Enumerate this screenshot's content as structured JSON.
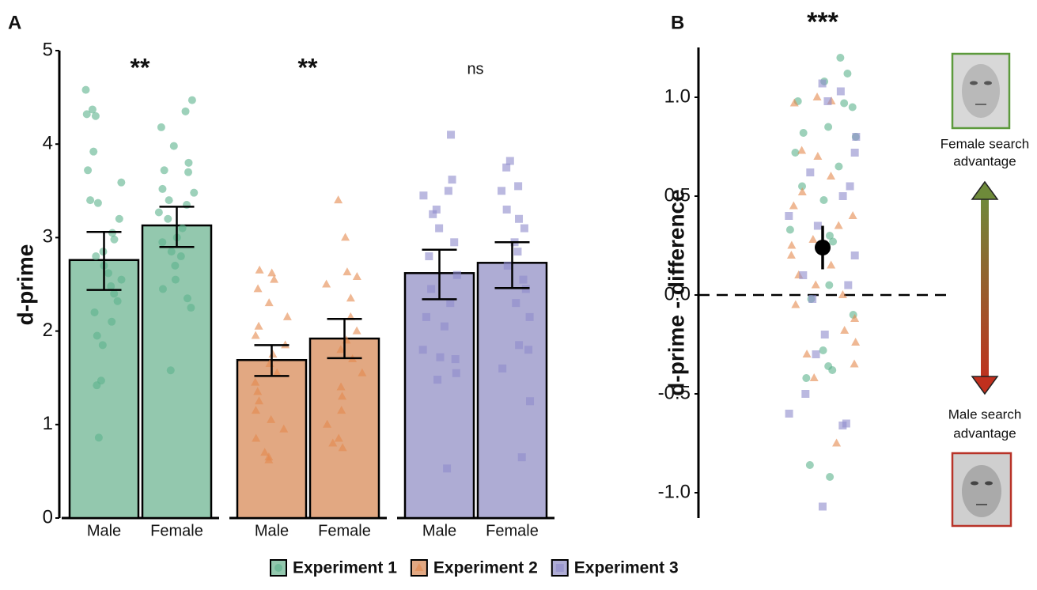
{
  "chart_data": [
    {
      "type": "bar",
      "panel_label": "A",
      "ylabel": "d-prime",
      "categories": [
        "Male",
        "Female"
      ],
      "ylim": [
        0,
        5
      ],
      "yticks": [
        0,
        1,
        2,
        3,
        4,
        5
      ],
      "series": [
        {
          "name": "Experiment 1",
          "color": "#93c8ae",
          "point_color": "#5cb38c",
          "marker": "circle",
          "annotation": "**",
          "values": [
            2.76,
            3.13
          ],
          "ci_low": [
            2.44,
            2.9
          ],
          "ci_high": [
            3.06,
            3.33
          ],
          "points": [
            [
              4.58,
              4.37,
              4.32,
              4.3,
              3.92,
              3.72,
              3.59,
              3.4,
              3.37,
              3.2,
              3.05,
              2.98,
              2.85,
              2.8,
              2.7,
              2.62,
              2.55,
              2.48,
              2.4,
              2.32,
              2.2,
              2.1,
              1.95,
              1.85,
              1.47,
              1.42,
              0.86
            ],
            [
              4.47,
              4.35,
              4.18,
              3.98,
              3.8,
              3.72,
              3.7,
              3.52,
              3.48,
              3.4,
              3.35,
              3.27,
              3.2,
              3.1,
              3.0,
              2.95,
              2.85,
              2.8,
              2.7,
              2.55,
              2.45,
              2.35,
              2.25,
              1.58
            ]
          ]
        },
        {
          "name": "Experiment 2",
          "color": "#e2a882",
          "point_color": "#e5884d",
          "marker": "triangle",
          "annotation": "**",
          "values": [
            1.69,
            1.92
          ],
          "ci_low": [
            1.52,
            1.71
          ],
          "ci_high": [
            1.85,
            2.13
          ],
          "points": [
            [
              2.65,
              2.62,
              2.55,
              2.45,
              2.3,
              2.15,
              2.05,
              1.95,
              1.85,
              1.75,
              1.65,
              1.55,
              1.45,
              1.35,
              1.25,
              1.15,
              1.05,
              0.95,
              0.85,
              0.7,
              0.65,
              0.62
            ],
            [
              3.4,
              3.0,
              2.63,
              2.58,
              2.5,
              2.35,
              2.15,
              2.0,
              1.9,
              1.8,
              1.7,
              1.55,
              1.4,
              1.3,
              1.15,
              1.0,
              0.85,
              0.8,
              0.75
            ]
          ]
        },
        {
          "name": "Experiment 3",
          "color": "#aeacd4",
          "point_color": "#8e8acb",
          "marker": "square",
          "annotation": "ns",
          "values": [
            2.62,
            2.73
          ],
          "ci_low": [
            2.34,
            2.46
          ],
          "ci_high": [
            2.87,
            2.95
          ],
          "points": [
            [
              4.1,
              3.62,
              3.5,
              3.45,
              3.3,
              3.25,
              3.1,
              2.95,
              2.8,
              2.6,
              2.45,
              2.3,
              2.15,
              2.05,
              1.8,
              1.72,
              1.7,
              1.55,
              1.48,
              0.53
            ],
            [
              3.82,
              3.75,
              3.55,
              3.5,
              3.3,
              3.2,
              3.1,
              2.95,
              2.85,
              2.7,
              2.55,
              2.45,
              2.3,
              2.15,
              1.85,
              1.8,
              1.6,
              1.25,
              0.65
            ]
          ]
        }
      ]
    },
    {
      "type": "strip",
      "panel_label": "B",
      "ylabel": "d-prime - difference",
      "annotation": "***",
      "ylim": [
        -1.128,
        1.252
      ],
      "yticks": [
        {
          "value": -1,
          "label": "-1.0"
        },
        {
          "value": -0.5,
          "label": "-0.5"
        },
        {
          "value": 0,
          "label": "0.0"
        },
        {
          "value": 0.5,
          "label": "0.5"
        },
        {
          "value": 1,
          "label": "1.0"
        }
      ],
      "reference_line": 0,
      "mean": 0.24,
      "ci_low": 0.13,
      "ci_high": 0.35,
      "top_label": [
        "Female search",
        "advantage"
      ],
      "bottom_label": [
        "Male search",
        "advantage"
      ],
      "series": [
        {
          "color": "#5cb38c",
          "marker": "circle",
          "values": [
            1.2,
            1.12,
            1.08,
            0.98,
            0.97,
            0.95,
            0.85,
            0.82,
            0.8,
            0.72,
            0.65,
            0.55,
            0.48,
            0.33,
            0.3,
            0.27,
            0.05,
            -0.02,
            -0.1,
            -0.28,
            -0.36,
            -0.38,
            -0.42,
            -0.86,
            -0.92
          ]
        },
        {
          "color": "#e5884d",
          "marker": "triangle",
          "values": [
            1.0,
            0.98,
            0.97,
            0.73,
            0.7,
            0.6,
            0.52,
            0.45,
            0.4,
            0.35,
            0.28,
            0.25,
            0.2,
            0.15,
            0.1,
            0.05,
            0.0,
            -0.05,
            -0.12,
            -0.18,
            -0.24,
            -0.3,
            -0.35,
            -0.42,
            -0.75
          ]
        },
        {
          "color": "#8e8acb",
          "marker": "square",
          "values": [
            1.07,
            1.03,
            0.98,
            0.8,
            0.72,
            0.62,
            0.55,
            0.5,
            0.4,
            0.35,
            0.2,
            0.1,
            0.05,
            -0.02,
            -0.2,
            -0.3,
            -0.5,
            -0.6,
            -0.65,
            -0.66,
            -1.07
          ]
        }
      ]
    }
  ]
}
